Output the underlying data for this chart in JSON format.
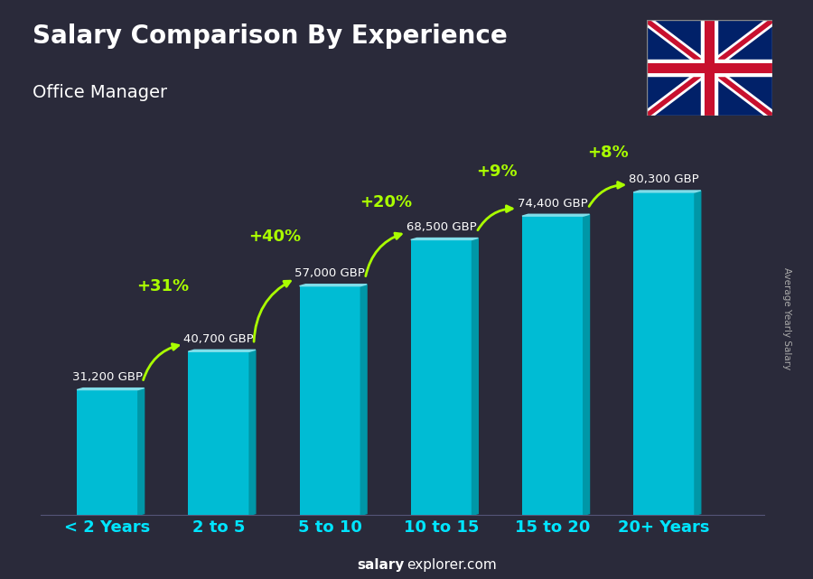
{
  "title": "Salary Comparison By Experience",
  "subtitle": "Office Manager",
  "categories": [
    "< 2 Years",
    "2 to 5",
    "5 to 10",
    "10 to 15",
    "15 to 20",
    "20+ Years"
  ],
  "values": [
    31200,
    40700,
    57000,
    68500,
    74400,
    80300
  ],
  "labels": [
    "31,200 GBP",
    "40,700 GBP",
    "57,000 GBP",
    "68,500 GBP",
    "74,400 GBP",
    "80,300 GBP"
  ],
  "pct_changes": [
    "+31%",
    "+40%",
    "+20%",
    "+9%",
    "+8%"
  ],
  "bar_color_face": "#00bcd4",
  "bar_color_side": "#0097a7",
  "bar_color_top": "#80deea",
  "bg_color": "#2a2a3a",
  "title_color": "#ffffff",
  "label_color": "#ffffff",
  "pct_color": "#aaff00",
  "xticklabel_color": "#00e5ff",
  "footer_salary": "salary",
  "footer_rest": "explorer.com",
  "ylabel_text": "Average Yearly Salary",
  "ylim_max": 95000,
  "flag_blue": "#012169",
  "flag_red": "#C8102E",
  "flag_white": "#ffffff"
}
